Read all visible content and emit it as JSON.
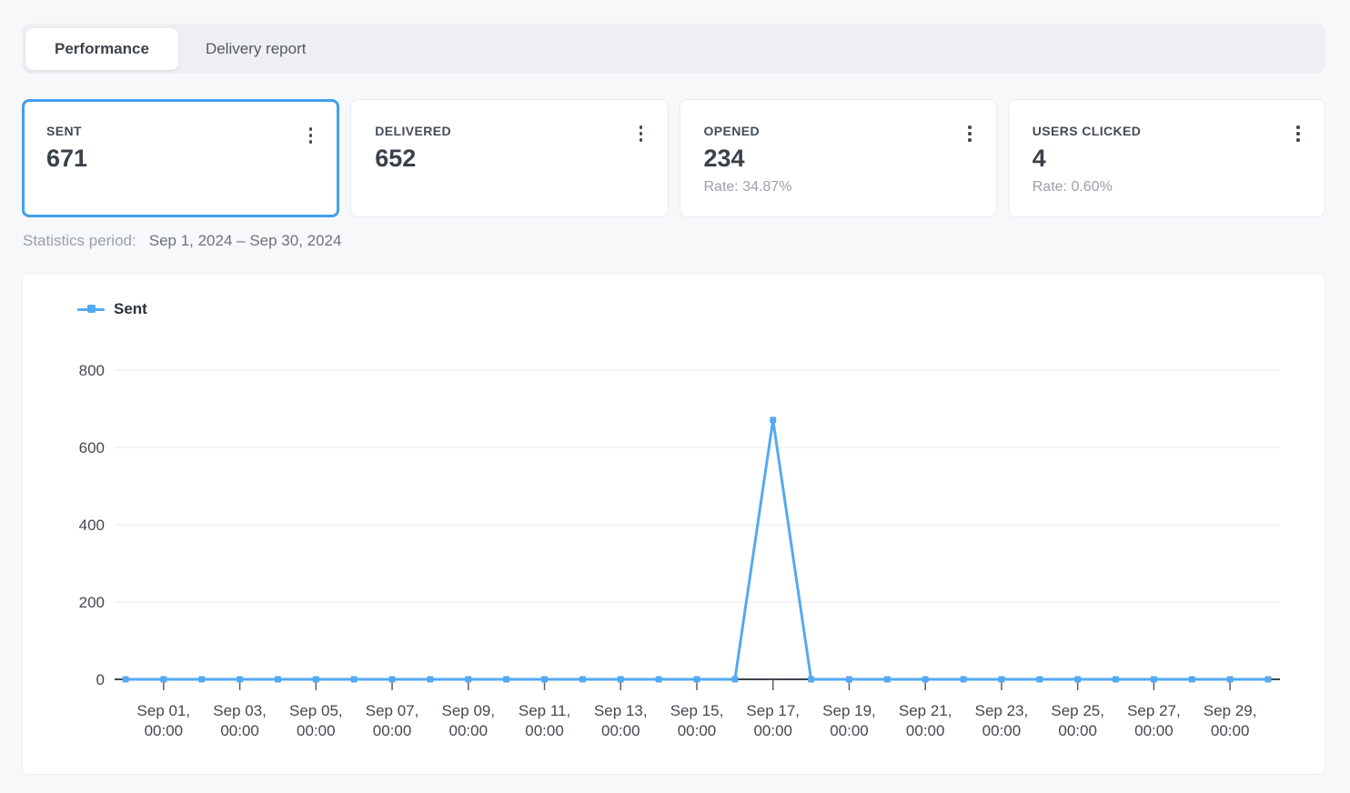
{
  "tabs": [
    {
      "label": "Performance",
      "active": true
    },
    {
      "label": "Delivery report",
      "active": false
    }
  ],
  "stat_cards": [
    {
      "label": "SENT",
      "value": "671",
      "rate": "",
      "selected": true
    },
    {
      "label": "DELIVERED",
      "value": "652",
      "rate": "",
      "selected": false
    },
    {
      "label": "OPENED",
      "value": "234",
      "rate": "Rate: 34.87%",
      "selected": false
    },
    {
      "label": "USERS CLICKED",
      "value": "4",
      "rate": "Rate: 0.60%",
      "selected": false
    }
  ],
  "statistics_period": {
    "label": "Statistics period:",
    "value": "Sep 1, 2024 – Sep 30, 2024"
  },
  "colors": {
    "accent_blue": "#41a0ee",
    "line_blue": "#55a9f1",
    "axis_line": "#3e464e",
    "grid_line": "#e9e9ec",
    "tick_mark": "#5a6066",
    "axis_text": "#44494f"
  },
  "chart_data": {
    "type": "line",
    "title": "",
    "xlabel": "",
    "ylabel": "",
    "ylim": [
      0,
      800
    ],
    "y_ticks": [
      0,
      200,
      400,
      600,
      800
    ],
    "grid": true,
    "legend_position": "top-left",
    "line_color": "#55a9f1",
    "x_time_suffix": "00:00",
    "x_tick_start_index": 1,
    "x_tick_every": 2,
    "x_dates": [
      "Aug 31",
      "Sep 01",
      "Sep 02",
      "Sep 03",
      "Sep 04",
      "Sep 05",
      "Sep 06",
      "Sep 07",
      "Sep 08",
      "Sep 09",
      "Sep 10",
      "Sep 11",
      "Sep 12",
      "Sep 13",
      "Sep 14",
      "Sep 15",
      "Sep 16",
      "Sep 17",
      "Sep 18",
      "Sep 19",
      "Sep 20",
      "Sep 21",
      "Sep 22",
      "Sep 23",
      "Sep 24",
      "Sep 25",
      "Sep 26",
      "Sep 27",
      "Sep 28",
      "Sep 29",
      "Sep 30"
    ],
    "series": [
      {
        "name": "Sent",
        "values": [
          0,
          0,
          0,
          0,
          0,
          0,
          0,
          0,
          0,
          0,
          0,
          0,
          0,
          0,
          0,
          0,
          0,
          671,
          0,
          0,
          0,
          0,
          0,
          0,
          0,
          0,
          0,
          0,
          0,
          0,
          0
        ]
      }
    ]
  }
}
